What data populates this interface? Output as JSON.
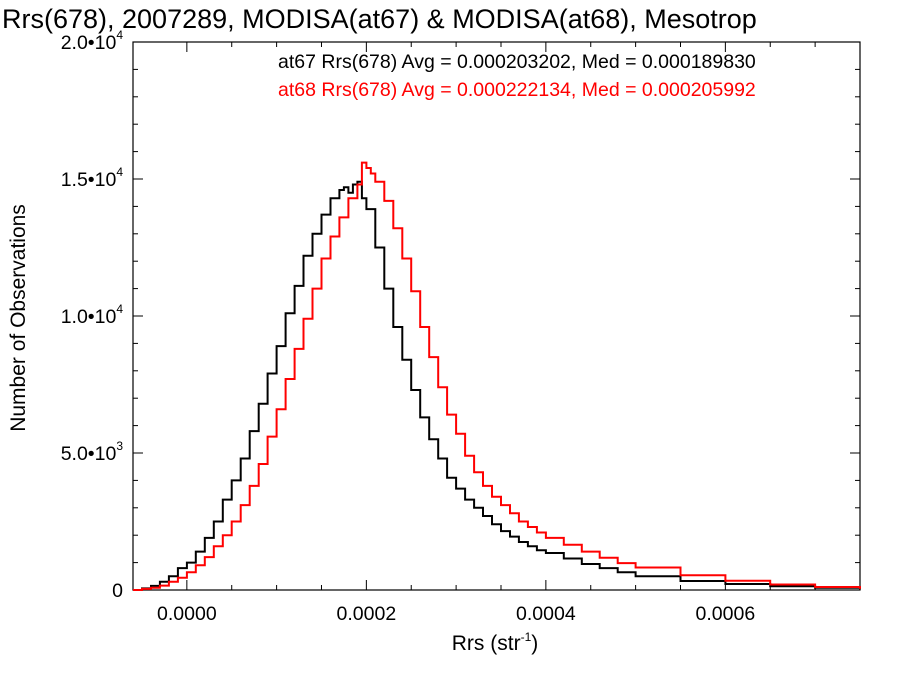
{
  "chart_data": {
    "type": "line",
    "title": "Rrs(678), 2007289, MODISA(at67) & MODISA(at68), Mesotrop",
    "xlabel": "Rrs (str",
    "xlabel_sup": "-1",
    "xlabel_close": ")",
    "ylabel": "Number of Observations",
    "xlim": [
      -6e-05,
      0.00075
    ],
    "ylim": [
      0,
      20000
    ],
    "x_ticks": [
      {
        "value": 0.0,
        "label": "0.0000"
      },
      {
        "value": 0.0002,
        "label": "0.0002"
      },
      {
        "value": 0.0004,
        "label": "0.0004"
      },
      {
        "value": 0.0006,
        "label": "0.0006"
      }
    ],
    "y_ticks": [
      {
        "value": 0,
        "label": "0",
        "exp": ""
      },
      {
        "value": 5000,
        "label": "5.0•10",
        "exp": "3"
      },
      {
        "value": 10000,
        "label": "1.0•10",
        "exp": "4"
      },
      {
        "value": 15000,
        "label": "1.5•10",
        "exp": "4"
      },
      {
        "value": 20000,
        "label": "2.0•10",
        "exp": "4"
      }
    ],
    "legend_position": "top-right",
    "series": [
      {
        "name": "at67",
        "color": "#000000",
        "annotation": "at67 Rrs(678) Avg = 0.000203202, Med = 0.000189830",
        "x": [
          -6e-05,
          -5e-05,
          -4e-05,
          -3e-05,
          -2e-05,
          -1e-05,
          0.0,
          1e-05,
          2e-05,
          3e-05,
          4e-05,
          5e-05,
          6e-05,
          7e-05,
          8e-05,
          9e-05,
          0.0001,
          0.00011,
          0.00012,
          0.00013,
          0.00014,
          0.00015,
          0.00016,
          0.00017,
          0.000175,
          0.00018,
          0.000185,
          0.00019,
          0.000195,
          0.0002,
          0.00021,
          0.00022,
          0.00023,
          0.00024,
          0.00025,
          0.00026,
          0.00027,
          0.00028,
          0.00029,
          0.0003,
          0.00031,
          0.00032,
          0.00033,
          0.00034,
          0.00035,
          0.00036,
          0.00037,
          0.00038,
          0.00039,
          0.0004,
          0.00042,
          0.00044,
          0.00046,
          0.00048,
          0.0005,
          0.00055,
          0.0006,
          0.00065,
          0.0007,
          0.00075
        ],
        "values": [
          0,
          60,
          150,
          300,
          500,
          800,
          1000,
          1400,
          1900,
          2500,
          3300,
          4000,
          4800,
          5800,
          6800,
          7900,
          8900,
          10100,
          11100,
          12200,
          13000,
          13700,
          14300,
          14600,
          14700,
          14500,
          14800,
          14900,
          14300,
          13900,
          12500,
          11000,
          9600,
          8400,
          7300,
          6300,
          5500,
          4800,
          4100,
          3700,
          3300,
          3000,
          2700,
          2400,
          2150,
          1950,
          1750,
          1600,
          1450,
          1350,
          1150,
          950,
          800,
          650,
          500,
          330,
          220,
          140,
          80,
          30
        ]
      },
      {
        "name": "at68",
        "color": "#ff0000",
        "annotation": "at68 Rrs(678) Avg = 0.000222134, Med = 0.000205992",
        "x": [
          -6e-05,
          -5e-05,
          -4e-05,
          -3e-05,
          -2e-05,
          -1e-05,
          0.0,
          1e-05,
          2e-05,
          3e-05,
          4e-05,
          5e-05,
          6e-05,
          7e-05,
          8e-05,
          9e-05,
          0.0001,
          0.00011,
          0.00012,
          0.00013,
          0.00014,
          0.00015,
          0.00016,
          0.00017,
          0.00018,
          0.00019,
          0.000195,
          0.0002,
          0.000205,
          0.00021,
          0.00022,
          0.00023,
          0.00024,
          0.00025,
          0.00026,
          0.00027,
          0.00028,
          0.00029,
          0.0003,
          0.00031,
          0.00032,
          0.00033,
          0.00034,
          0.00035,
          0.00036,
          0.00037,
          0.00038,
          0.00039,
          0.0004,
          0.00042,
          0.00044,
          0.00046,
          0.00048,
          0.0005,
          0.00055,
          0.0006,
          0.00065,
          0.0007,
          0.00075
        ],
        "values": [
          0,
          40,
          80,
          160,
          300,
          450,
          650,
          900,
          1200,
          1600,
          2000,
          2500,
          3100,
          3800,
          4600,
          5600,
          6600,
          7700,
          8800,
          9900,
          11000,
          12100,
          12900,
          13600,
          14300,
          14800,
          15600,
          15400,
          15200,
          14900,
          14200,
          13200,
          12100,
          10900,
          9600,
          8500,
          7400,
          6400,
          5700,
          4900,
          4300,
          3800,
          3400,
          3100,
          2800,
          2500,
          2300,
          2100,
          1900,
          1650,
          1400,
          1180,
          980,
          820,
          540,
          340,
          200,
          110,
          40
        ]
      }
    ]
  }
}
